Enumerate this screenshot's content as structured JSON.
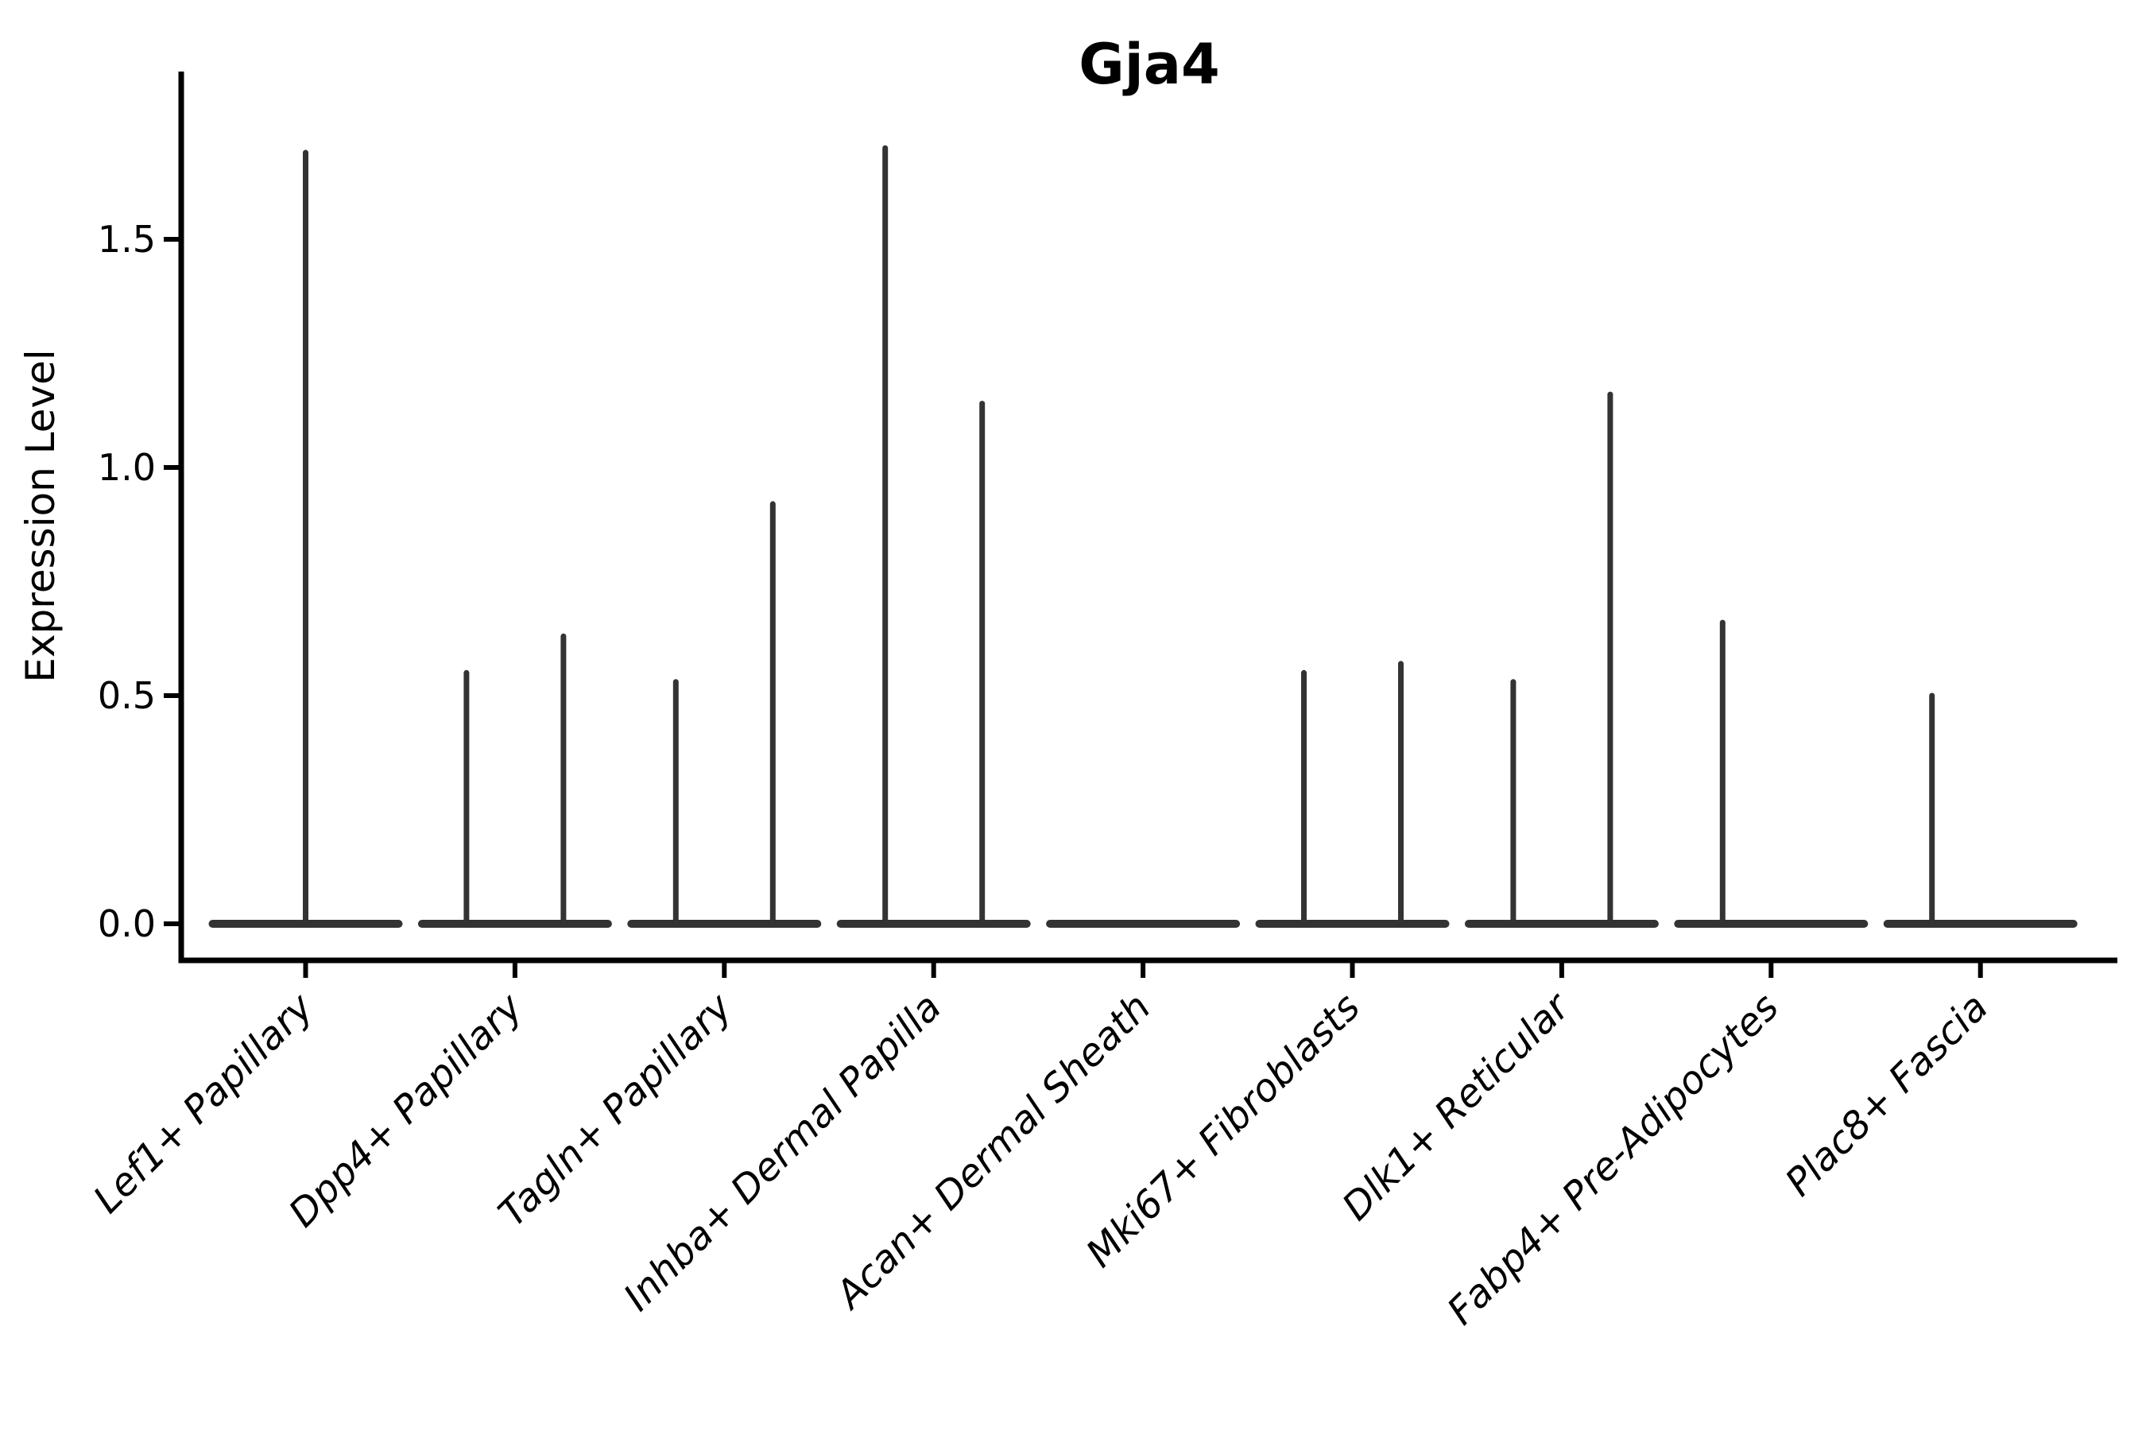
{
  "figure": {
    "title": "Gja4",
    "ylabel": "Expression Level"
  },
  "chart_data": {
    "type": "violin",
    "title": "Gja4",
    "xlabel": "",
    "ylabel": "Expression Level",
    "ylim": [
      -0.08,
      1.88
    ],
    "yticks": [
      0.0,
      0.5,
      1.0,
      1.5
    ],
    "ytick_labels": [
      "0.0",
      "0.5",
      "1.0",
      "1.5"
    ],
    "grid": false,
    "legend": "none",
    "categories": [
      "Lef1+ Papillary",
      "Dpp4+ Papillary",
      "Tagln+ Papillary",
      "Inhba+ Dermal Papilla",
      "Acan+ Dermal Sheath",
      "Mki67+ Fibroblasts",
      "Dlk1+ Reticular",
      "Fabp4+ Pre-Adipocytes",
      "Plac8+ Fascia"
    ],
    "groups": [
      {
        "category": "Lef1+ Papillary",
        "violins": [
          {
            "position": "center",
            "width": "full",
            "max_expression": 1.69
          }
        ]
      },
      {
        "category": "Dpp4+ Papillary",
        "violins": [
          {
            "position": "left",
            "width": "half",
            "max_expression": 0.55
          },
          {
            "position": "right",
            "width": "half",
            "max_expression": 0.63
          }
        ]
      },
      {
        "category": "Tagln+ Papillary",
        "violins": [
          {
            "position": "left",
            "width": "half",
            "max_expression": 0.53
          },
          {
            "position": "right",
            "width": "half",
            "max_expression": 0.92
          }
        ]
      },
      {
        "category": "Inhba+ Dermal Papilla",
        "violins": [
          {
            "position": "left",
            "width": "half",
            "max_expression": 1.7
          },
          {
            "position": "right",
            "width": "half",
            "max_expression": 1.14
          }
        ]
      },
      {
        "category": "Acan+ Dermal Sheath",
        "violins": [
          {
            "position": "center",
            "width": "full",
            "max_expression": 0.0
          }
        ]
      },
      {
        "category": "Mki67+ Fibroblasts",
        "violins": [
          {
            "position": "left",
            "width": "half",
            "max_expression": 0.55
          },
          {
            "position": "right",
            "width": "half",
            "max_expression": 0.57
          }
        ]
      },
      {
        "category": "Dlk1+ Reticular",
        "violins": [
          {
            "position": "left",
            "width": "half",
            "max_expression": 0.53
          },
          {
            "position": "right",
            "width": "half",
            "max_expression": 1.16
          }
        ]
      },
      {
        "category": "Fabp4+ Pre-Adipocytes",
        "violins": [
          {
            "position": "left",
            "width": "half",
            "max_expression": 0.66
          },
          {
            "position": "right",
            "width": "half",
            "max_expression": 0.0
          }
        ]
      },
      {
        "category": "Plac8+ Fascia",
        "violins": [
          {
            "position": "left",
            "width": "half",
            "max_expression": 0.5
          },
          {
            "position": "right",
            "width": "half",
            "max_expression": 0.0
          }
        ]
      }
    ],
    "style": {
      "violin_color": "#333333",
      "axis_color": "#000000",
      "background": "#ffffff"
    }
  }
}
